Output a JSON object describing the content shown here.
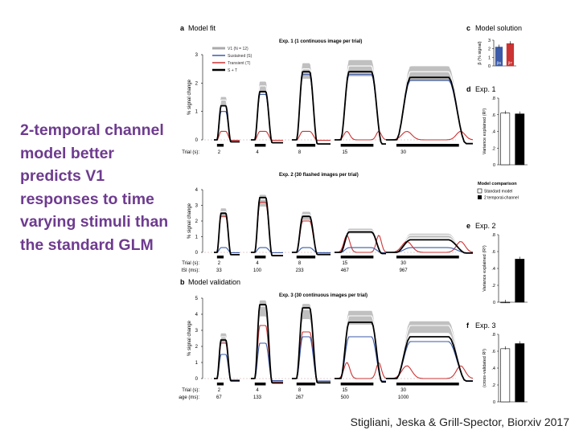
{
  "slide": {
    "title": "2-temporal channel model better predicts V1 responses to time varying stimuli than the standard GLM",
    "citation": "Stigliani, Jeska & Grill-Spector, Biorxiv 2017"
  },
  "figure": {
    "panel_a": {
      "letter": "a",
      "title": "Model fit"
    },
    "panel_b": {
      "letter": "b",
      "title": "Model validation"
    },
    "panel_c": {
      "letter": "c",
      "title": "Model solution"
    },
    "panel_d": {
      "letter": "d",
      "title": "Exp. 1"
    },
    "panel_e": {
      "letter": "e",
      "title": "Exp. 2"
    },
    "panel_f": {
      "letter": "f",
      "title": "Exp. 3"
    },
    "legend": {
      "items": [
        {
          "label": "V1 (N = 12)",
          "color": "#aaaaaa"
        },
        {
          "label": "Sustained (S)",
          "color": "#3b5aa8"
        },
        {
          "label": "Transient (T)",
          "color": "#cc3333"
        },
        {
          "label": "S + T",
          "color": "#000000"
        }
      ]
    },
    "model_comparison": {
      "title": "Model comparison",
      "items": [
        {
          "label": "Standard model",
          "color": "#ffffff"
        },
        {
          "label": "2 temporal-channel",
          "color": "#000000"
        }
      ]
    },
    "colors": {
      "data": "#aaaaaa",
      "sustained": "#3b5aa8",
      "transient": "#cc3333",
      "sum": "#000000"
    }
  },
  "chart_data": [
    {
      "type": "line",
      "title": "Exp. 1 (1 continuous image per trial)",
      "ylabel": "% signal change",
      "ylim": [
        0,
        3
      ],
      "yticks": [
        0,
        1,
        2,
        3
      ],
      "trial_label": "Trial (s):",
      "conditions": [
        {
          "trial": "2",
          "data_peak": 1.4,
          "sum_peak": 1.2,
          "sustained_peak": 1.0,
          "transient_peak": 0.3,
          "duration": 2
        },
        {
          "trial": "4",
          "data_peak": 1.9,
          "sum_peak": 1.7,
          "sustained_peak": 1.6,
          "transient_peak": 0.3,
          "duration": 4
        },
        {
          "trial": "8",
          "data_peak": 2.5,
          "sum_peak": 2.4,
          "sustained_peak": 2.3,
          "transient_peak": 0.3,
          "duration": 8
        },
        {
          "trial": "15",
          "data_peak": 2.6,
          "sum_peak": 2.4,
          "sustained_peak": 2.3,
          "transient_peak": 0.3,
          "duration": 15
        },
        {
          "trial": "30",
          "data_peak": 2.4,
          "sum_peak": 2.2,
          "sustained_peak": 2.1,
          "transient_peak": 0.3,
          "duration": 30
        }
      ]
    },
    {
      "type": "line",
      "title": "Exp. 2 (30 flashed images per trial)",
      "ylabel": "% signal change",
      "ylim": [
        0,
        4
      ],
      "yticks": [
        0,
        1,
        2,
        3,
        4
      ],
      "trial_label": "Trial (s):",
      "isi_label": "ISI (ms):",
      "conditions": [
        {
          "trial": "2",
          "isi": "33",
          "data_peak": 2.6,
          "sum_peak": 2.5,
          "sustained_peak": 0.3,
          "transient_peak": 2.3,
          "duration": 2
        },
        {
          "trial": "4",
          "isi": "100",
          "data_peak": 3.4,
          "sum_peak": 3.5,
          "sustained_peak": 0.3,
          "transient_peak": 3.2,
          "duration": 4
        },
        {
          "trial": "8",
          "isi": "233",
          "data_peak": 2.4,
          "sum_peak": 2.3,
          "sustained_peak": 0.3,
          "transient_peak": 2.0,
          "duration": 8
        },
        {
          "trial": "15",
          "isi": "467",
          "data_peak": 1.4,
          "sum_peak": 1.3,
          "sustained_peak": 0.3,
          "transient_peak": 1.1,
          "duration": 15
        },
        {
          "trial": "30",
          "isi": "967",
          "data_peak": 1.1,
          "sum_peak": 0.8,
          "sustained_peak": 0.3,
          "transient_peak": 0.7,
          "duration": 30
        }
      ]
    },
    {
      "type": "line",
      "title": "Exp. 3 (30 continuous images per trial)",
      "ylabel": "% signal change",
      "ylim": [
        0,
        5
      ],
      "yticks": [
        0,
        1,
        2,
        3,
        4,
        5
      ],
      "trial_label": "Trial (s):",
      "image_label": "Image (ms):",
      "conditions": [
        {
          "trial": "2",
          "image": "67",
          "data_peak": 2.6,
          "sum_peak": 2.4,
          "sustained_peak": 1.5,
          "transient_peak": 2.2,
          "duration": 2
        },
        {
          "trial": "4",
          "image": "133",
          "data_peak": 4.5,
          "sum_peak": 4.6,
          "sustained_peak": 2.2,
          "transient_peak": 3.3,
          "duration": 4
        },
        {
          "trial": "8",
          "image": "267",
          "data_peak": 4.3,
          "sum_peak": 4.4,
          "sustained_peak": 2.6,
          "transient_peak": 2.9,
          "duration": 8
        },
        {
          "trial": "15",
          "image": "500",
          "data_peak": 3.9,
          "sum_peak": 3.5,
          "sustained_peak": 2.6,
          "transient_peak": 1.0,
          "duration": 15
        },
        {
          "trial": "30",
          "image": "1000",
          "data_peak": 3.3,
          "sum_peak": 2.6,
          "sustained_peak": 2.3,
          "transient_peak": 0.8,
          "duration": 30
        }
      ]
    },
    {
      "type": "bar",
      "panel": "c",
      "ylabel": "β (% signal)",
      "ylim": [
        0,
        3
      ],
      "yticks": [
        0,
        1,
        2,
        3
      ],
      "categories": [
        "βS",
        "βT"
      ],
      "values": [
        2.2,
        2.6
      ],
      "colors": [
        "#3b5aa8",
        "#cc3333"
      ]
    },
    {
      "type": "bar",
      "panel": "d",
      "ylabel": "Variance explained (R²)",
      "ylim": [
        0,
        0.8
      ],
      "yticks": [
        0,
        0.2,
        0.4,
        0.6,
        0.8
      ],
      "ytick_labels": [
        "0",
        ".2",
        ".4",
        ".6",
        ".8"
      ],
      "categories": [
        "Standard model",
        "2 temporal-channel"
      ],
      "values": [
        0.62,
        0.61
      ]
    },
    {
      "type": "bar",
      "panel": "e",
      "ylabel": "Variance explained (R²)",
      "ylim": [
        0,
        0.8
      ],
      "yticks": [
        0,
        0.2,
        0.4,
        0.6,
        0.8
      ],
      "ytick_labels": [
        "0",
        ".2",
        ".4",
        ".6",
        ".8"
      ],
      "categories": [
        "Standard model",
        "2 temporal-channel"
      ],
      "values": [
        0.0,
        0.51
      ]
    },
    {
      "type": "bar",
      "panel": "f",
      "ylabel": "(cross-validated R²)",
      "ylim": [
        0,
        0.8
      ],
      "yticks": [
        0,
        0.2,
        0.4,
        0.6,
        0.8
      ],
      "ytick_labels": [
        "0",
        ".2",
        ".4",
        ".6",
        ".8"
      ],
      "categories": [
        "Standard model",
        "2 temporal-channel"
      ],
      "values": [
        0.63,
        0.69
      ]
    }
  ]
}
